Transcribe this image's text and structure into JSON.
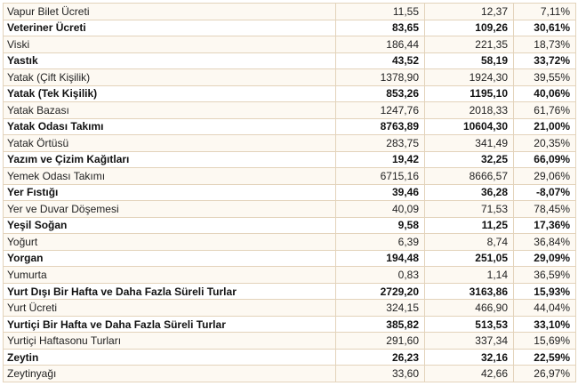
{
  "rows": [
    {
      "name": "Vapur Bilet Ücreti",
      "v1": "11,55",
      "v2": "12,37",
      "change": "7,11%",
      "bold": false
    },
    {
      "name": "Veteriner Ücreti",
      "v1": "83,65",
      "v2": "109,26",
      "change": "30,61%",
      "bold": true
    },
    {
      "name": "Viski",
      "v1": "186,44",
      "v2": "221,35",
      "change": "18,73%",
      "bold": false
    },
    {
      "name": "Yastık",
      "v1": "43,52",
      "v2": "58,19",
      "change": "33,72%",
      "bold": true
    },
    {
      "name": "Yatak (Çift Kişilik)",
      "v1": "1378,90",
      "v2": "1924,30",
      "change": "39,55%",
      "bold": false
    },
    {
      "name": "Yatak (Tek Kişilik)",
      "v1": "853,26",
      "v2": "1195,10",
      "change": "40,06%",
      "bold": true
    },
    {
      "name": "Yatak Bazası",
      "v1": "1247,76",
      "v2": "2018,33",
      "change": "61,76%",
      "bold": false
    },
    {
      "name": "Yatak Odası Takımı",
      "v1": "8763,89",
      "v2": "10604,30",
      "change": "21,00%",
      "bold": true
    },
    {
      "name": "Yatak Örtüsü",
      "v1": "283,75",
      "v2": "341,49",
      "change": "20,35%",
      "bold": false
    },
    {
      "name": "Yazım ve Çizim Kağıtları",
      "v1": "19,42",
      "v2": "32,25",
      "change": "66,09%",
      "bold": true
    },
    {
      "name": "Yemek Odası Takımı",
      "v1": "6715,16",
      "v2": "8666,57",
      "change": "29,06%",
      "bold": false
    },
    {
      "name": "Yer Fıstığı",
      "v1": "39,46",
      "v2": "36,28",
      "change": "-8,07%",
      "bold": true
    },
    {
      "name": "Yer ve Duvar Döşemesi",
      "v1": "40,09",
      "v2": "71,53",
      "change": "78,45%",
      "bold": false
    },
    {
      "name": "Yeşil Soğan",
      "v1": "9,58",
      "v2": "11,25",
      "change": "17,36%",
      "bold": true
    },
    {
      "name": "Yoğurt",
      "v1": "6,39",
      "v2": "8,74",
      "change": "36,84%",
      "bold": false
    },
    {
      "name": "Yorgan",
      "v1": "194,48",
      "v2": "251,05",
      "change": "29,09%",
      "bold": true
    },
    {
      "name": "Yumurta",
      "v1": "0,83",
      "v2": "1,14",
      "change": "36,59%",
      "bold": false
    },
    {
      "name": "Yurt Dışı Bir Hafta ve Daha Fazla Süreli Turlar",
      "v1": "2729,20",
      "v2": "3163,86",
      "change": "15,93%",
      "bold": true
    },
    {
      "name": "Yurt Ücreti",
      "v1": "324,15",
      "v2": "466,90",
      "change": "44,04%",
      "bold": false
    },
    {
      "name": "Yurtiçi Bir Hafta ve Daha Fazla Süreli Turlar",
      "v1": "385,82",
      "v2": "513,53",
      "change": "33,10%",
      "bold": true
    },
    {
      "name": "Yurtiçi Haftasonu Turları",
      "v1": "291,60",
      "v2": "337,34",
      "change": "15,69%",
      "bold": false
    },
    {
      "name": "Zeytin",
      "v1": "26,23",
      "v2": "32,16",
      "change": "22,59%",
      "bold": true
    },
    {
      "name": "Zeytinyağı",
      "v1": "33,60",
      "v2": "42,66",
      "change": "26,97%",
      "bold": false
    }
  ]
}
